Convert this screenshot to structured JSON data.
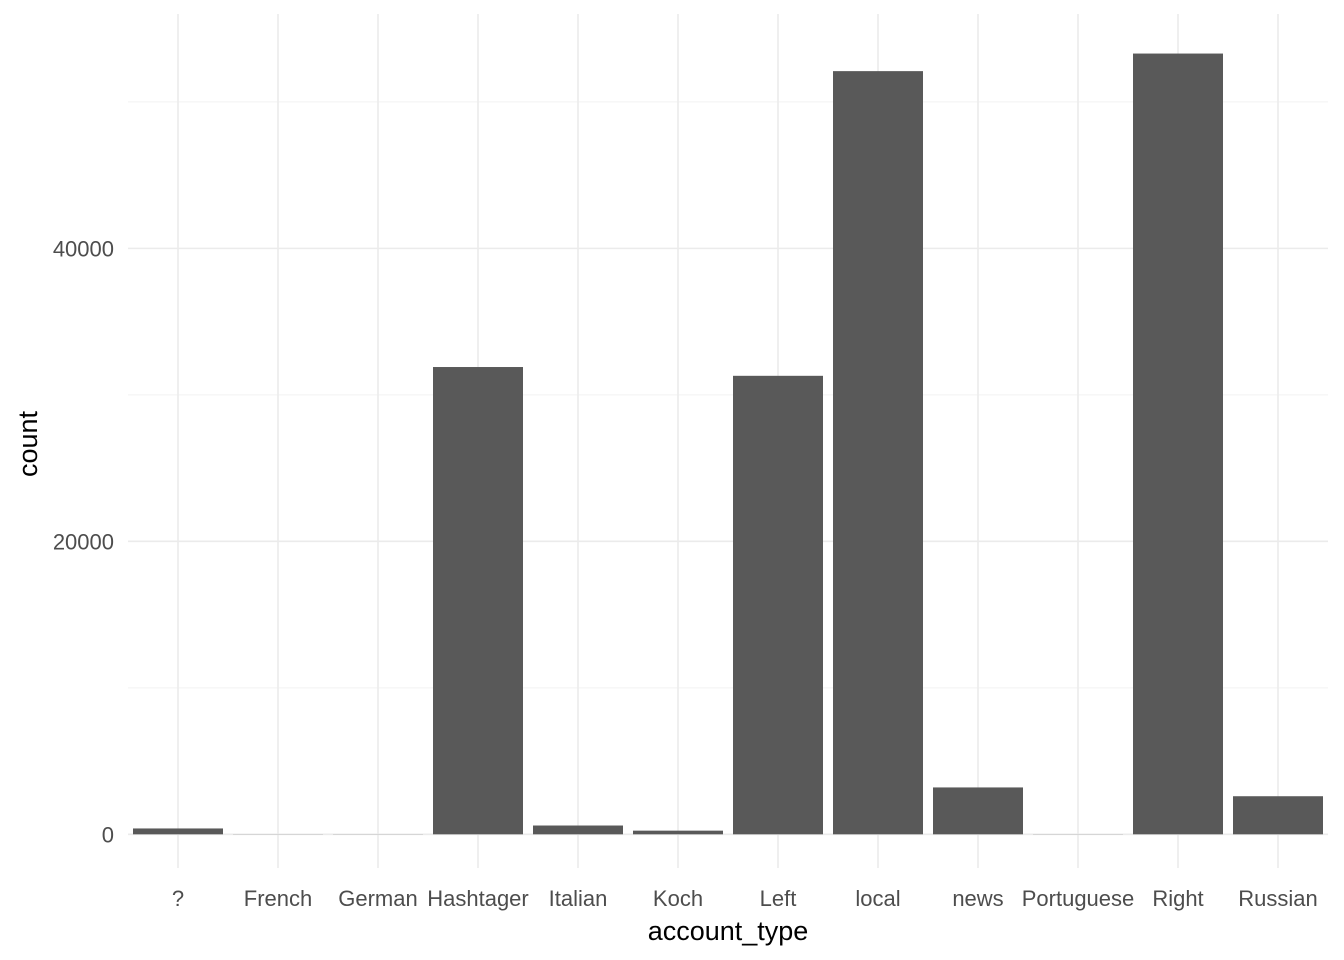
{
  "chart_data": {
    "type": "bar",
    "categories": [
      "?",
      "French",
      "German",
      "Hashtager",
      "Italian",
      "Koch",
      "Left",
      "local",
      "news",
      "Portuguese",
      "Right",
      "Russian"
    ],
    "values": [
      400,
      10,
      10,
      31900,
      600,
      250,
      31300,
      52100,
      3200,
      10,
      53300,
      2600
    ],
    "xlabel": "account_type",
    "ylabel": "count",
    "ylim": [
      -2300,
      56000
    ],
    "yticks": [
      0,
      20000,
      40000
    ],
    "ytick_labels": [
      "0",
      "20000",
      "40000"
    ],
    "grid": true,
    "bar_color": "#595959",
    "grid_color": "#ebebeb"
  }
}
